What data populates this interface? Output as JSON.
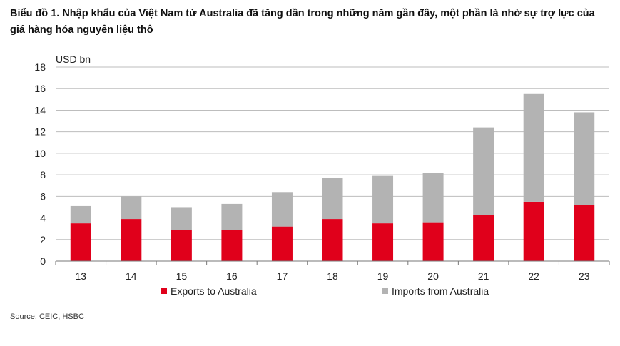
{
  "title": "Biểu đồ 1. Nhập khẩu của Việt Nam từ Australia đã tăng dần trong những năm gần đây, một phần là nhờ sự trợ lực của giá hàng hóa nguyên liệu thô",
  "source": "Source: CEIC, HSBC",
  "colors": {
    "exports": "#e0001b",
    "imports": "#b3b3b3",
    "grid": "#bdbdbd",
    "axis": "#777777"
  },
  "chart_data": {
    "type": "bar",
    "stacked": true,
    "unit_label": "USD bn",
    "categories": [
      "13",
      "14",
      "15",
      "16",
      "17",
      "18",
      "19",
      "20",
      "21",
      "22",
      "23"
    ],
    "series": [
      {
        "name": "Exports to Australia",
        "values": [
          3.5,
          3.9,
          2.9,
          2.9,
          3.2,
          3.9,
          3.5,
          3.6,
          4.3,
          5.5,
          5.2
        ]
      },
      {
        "name": "Imports from Australia",
        "values": [
          1.6,
          2.1,
          2.1,
          2.4,
          3.2,
          3.8,
          4.4,
          4.6,
          8.1,
          10.0,
          8.6
        ]
      }
    ],
    "yticks": [
      0,
      2,
      4,
      6,
      8,
      10,
      12,
      14,
      16,
      18
    ],
    "ylim": [
      0,
      18
    ],
    "grid": true,
    "legend_position": "bottom"
  }
}
